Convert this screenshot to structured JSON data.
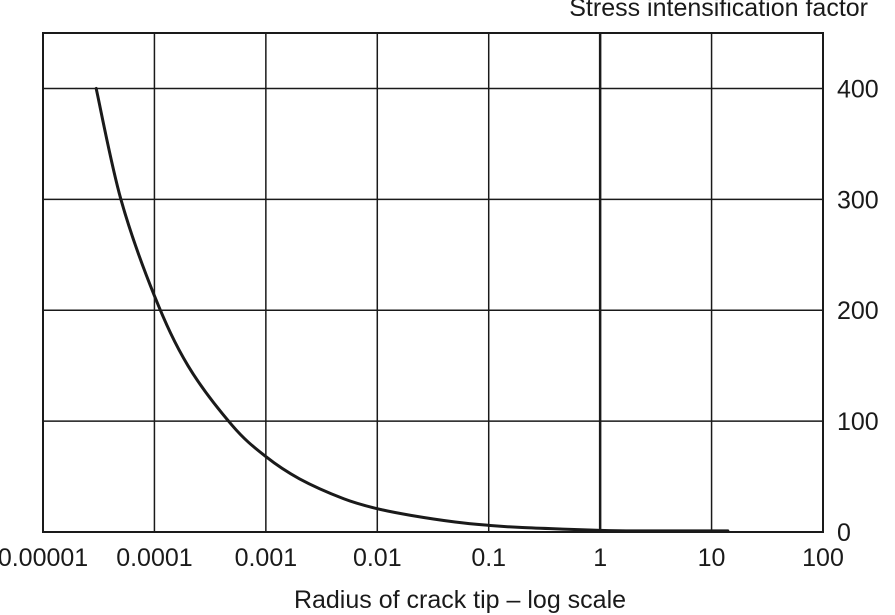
{
  "chart_data": {
    "type": "line",
    "xscale": "log",
    "xlabel": "Radius of crack tip – log scale",
    "ylabel": "Stress intensification factor",
    "xlim": [
      1e-05,
      100
    ],
    "ylim": [
      0,
      450
    ],
    "x_tick_labels": [
      "0.00001",
      "0.0001",
      "0.001",
      "0.01",
      "0.1",
      "1",
      "10",
      "100"
    ],
    "y_tick_labels": [
      "0",
      "100",
      "200",
      "300",
      "400"
    ],
    "y_axis_side": "right",
    "grid": true,
    "legend": "none",
    "line_color": "#1a1a1a",
    "series": [
      {
        "x": [
          3e-05,
          5e-05,
          0.0001,
          0.0002,
          0.0005,
          0.001,
          0.002,
          0.005,
          0.01,
          0.02,
          0.05,
          0.1,
          0.2,
          0.5,
          1,
          2,
          5,
          14
        ],
        "y": [
          400,
          300,
          213,
          150,
          96,
          68,
          48,
          30,
          21,
          15,
          9,
          6,
          4,
          2.5,
          1.5,
          1,
          1,
          1
        ]
      }
    ]
  }
}
